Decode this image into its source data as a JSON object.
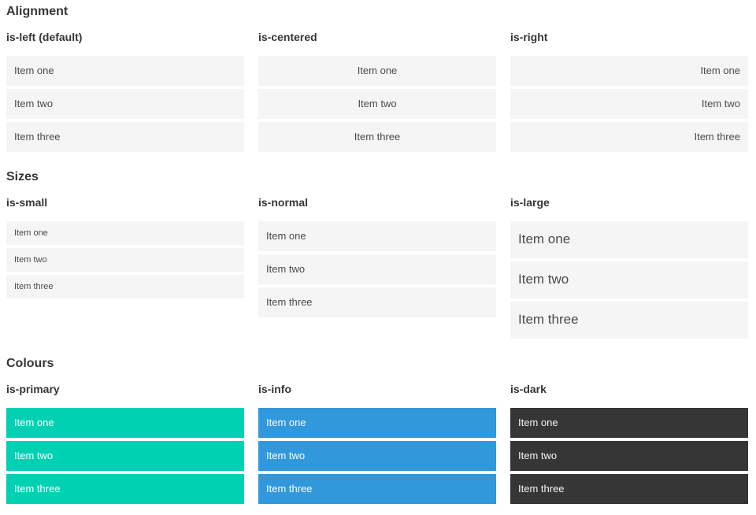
{
  "colors": {
    "heading": "#363636",
    "item_bg": "#f5f5f5",
    "item_text": "#4a4a4a",
    "primary": "#00d1b2",
    "info": "#3298dc",
    "dark": "#363636",
    "text_on_color": "#ffffff",
    "text_on_dark": "#f5f5f5"
  },
  "sections": [
    {
      "title": "Alignment",
      "columns": [
        {
          "label": "is-left (default)",
          "items": [
            "Item one",
            "Item two",
            "Item three"
          ]
        },
        {
          "label": "is-centered",
          "items": [
            "Item one",
            "Item two",
            "Item three"
          ]
        },
        {
          "label": "is-right",
          "items": [
            "Item one",
            "Item two",
            "Item three"
          ]
        }
      ]
    },
    {
      "title": "Sizes",
      "columns": [
        {
          "label": "is-small",
          "items": [
            "Item one",
            "Item two",
            "Item three"
          ]
        },
        {
          "label": "is-normal",
          "items": [
            "Item one",
            "Item two",
            "Item three"
          ]
        },
        {
          "label": "is-large",
          "items": [
            "Item one",
            "Item two",
            "Item three"
          ]
        }
      ]
    },
    {
      "title": "Colours",
      "columns": [
        {
          "label": "is-primary",
          "items": [
            "Item one",
            "Item two",
            "Item three"
          ]
        },
        {
          "label": "is-info",
          "items": [
            "Item one",
            "Item two",
            "Item three"
          ]
        },
        {
          "label": "is-dark",
          "items": [
            "Item one",
            "Item two",
            "Item three"
          ]
        }
      ]
    }
  ]
}
